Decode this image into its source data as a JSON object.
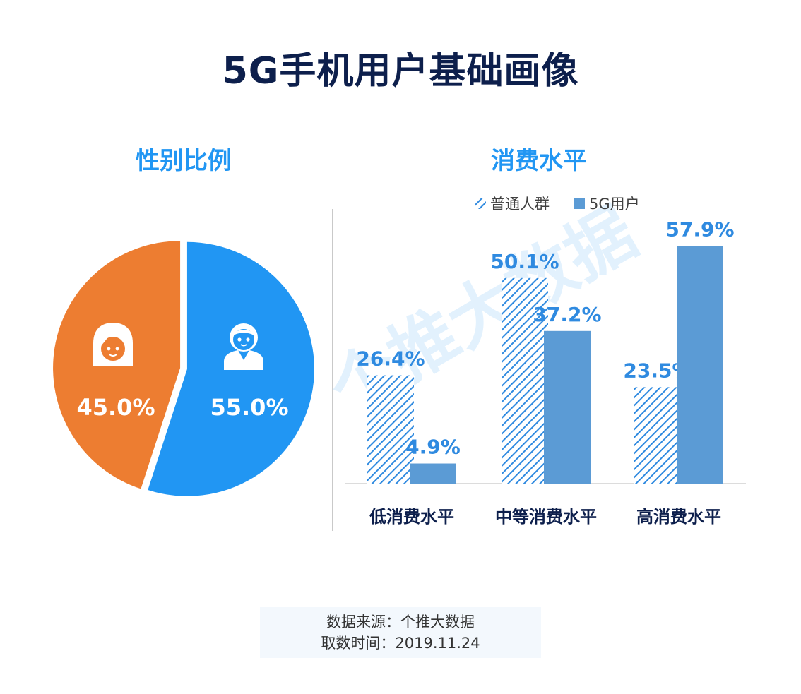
{
  "title": "5G手机用户基础画像",
  "watermark": "个推大数据",
  "left_section": {
    "title": "性别比例"
  },
  "right_section": {
    "title": "消费水平"
  },
  "source": {
    "line1": "数据来源：个推大数据",
    "line2": "取数时间：2019.11.24"
  },
  "colors": {
    "title": "#0d1f4c",
    "accent": "#2196f3",
    "female": "#ed7d31",
    "male": "#2196f3",
    "bar_solid": "#5b9bd5",
    "bar_hatch": "#2f8ae0"
  },
  "chart_data": [
    {
      "type": "pie",
      "title": "性别比例",
      "slices": [
        {
          "name": "女",
          "value": 45.0,
          "label": "45.0%",
          "icon": "female-avatar-icon",
          "color": "#ed7d31"
        },
        {
          "name": "男",
          "value": 55.0,
          "label": "55.0%",
          "icon": "male-avatar-icon",
          "color": "#2196f3"
        }
      ]
    },
    {
      "type": "bar",
      "title": "消费水平",
      "categories": [
        "低消费水平",
        "中等消费水平",
        "高消费水平"
      ],
      "series": [
        {
          "name": "普通人群",
          "values": [
            26.4,
            50.1,
            23.5
          ],
          "labels": [
            "26.4%",
            "50.1%",
            "23.5%"
          ],
          "style": "hatched"
        },
        {
          "name": "5G用户",
          "values": [
            4.9,
            37.2,
            57.9
          ],
          "labels": [
            "4.9%",
            "37.2%",
            "57.9%"
          ],
          "style": "solid"
        }
      ],
      "ylim": [
        0,
        60
      ],
      "legend": "top-right",
      "grid": false
    }
  ]
}
